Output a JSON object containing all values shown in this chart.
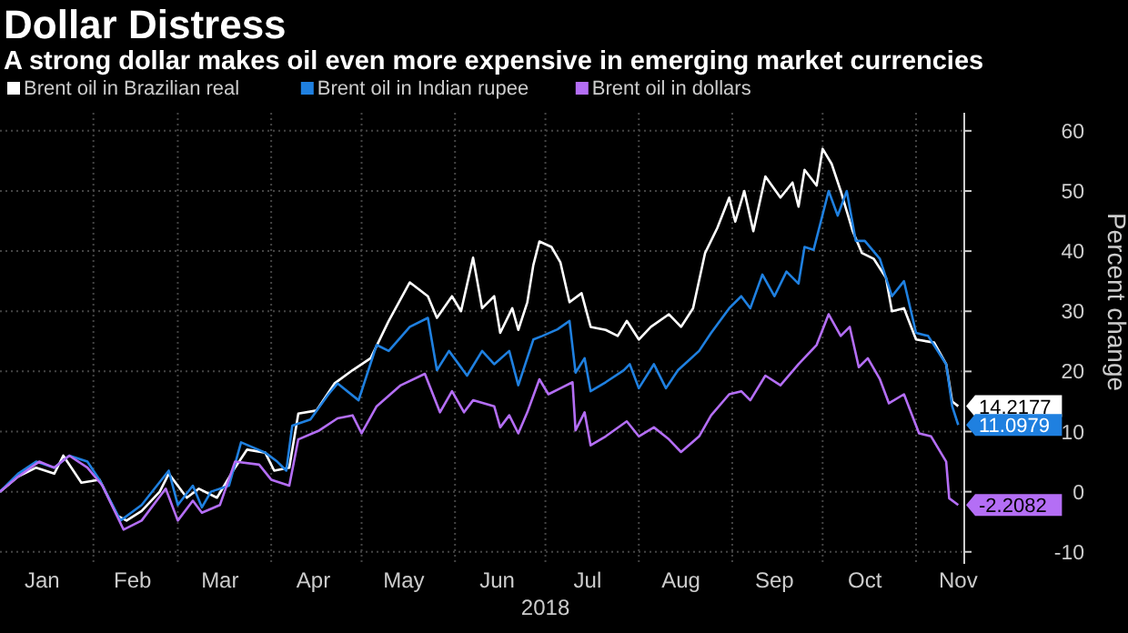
{
  "chart_data": {
    "type": "line",
    "title": "Dollar Distress",
    "subtitle": "A strong dollar makes oil even more expensive in emerging market currencies",
    "xlabel": "2018",
    "ylabel": "Percent change",
    "legend": "top left",
    "grid": true,
    "line_style": "solid",
    "marker": "none",
    "xlim": [
      "2018-01-01",
      "2018-11-17"
    ],
    "xticks": [
      {
        "value": "2018-01-15",
        "label": "Jan"
      },
      {
        "value": "2018-02-01",
        "label": null
      },
      {
        "value": "2018-02-14",
        "label": "Feb"
      },
      {
        "value": "2018-03-01",
        "label": null
      },
      {
        "value": "2018-03-15",
        "label": "Mar"
      },
      {
        "value": "2018-04-01",
        "label": null
      },
      {
        "value": "2018-04-15",
        "label": "Apr"
      },
      {
        "value": "2018-05-01",
        "label": null
      },
      {
        "value": "2018-05-15",
        "label": "May"
      },
      {
        "value": "2018-06-01",
        "label": null
      },
      {
        "value": "2018-06-15",
        "label": "Jun"
      },
      {
        "value": "2018-07-01",
        "label": null
      },
      {
        "value": "2018-07-15",
        "label": "Jul"
      },
      {
        "value": "2018-08-01",
        "label": null
      },
      {
        "value": "2018-08-15",
        "label": "Aug"
      },
      {
        "value": "2018-09-01",
        "label": null
      },
      {
        "value": "2018-09-15",
        "label": "Sep"
      },
      {
        "value": "2018-10-01",
        "label": null
      },
      {
        "value": "2018-10-15",
        "label": "Oct"
      },
      {
        "value": "2018-11-01",
        "label": null
      },
      {
        "value": "2018-11-15",
        "label": "Nov"
      }
    ],
    "ylim": [
      -12,
      63
    ],
    "yticks": [
      -10,
      0,
      10,
      20,
      30,
      40,
      50,
      60
    ],
    "series": [
      {
        "name": "Brent oil in Brazilian real",
        "color": "#ffffff",
        "x": [
          "2018-01-01",
          "2018-01-07",
          "2018-01-13",
          "2018-01-19",
          "2018-01-22",
          "2018-01-28",
          "2018-02-03",
          "2018-02-09",
          "2018-02-12",
          "2018-02-17",
          "2018-02-23",
          "2018-02-26",
          "2018-03-04",
          "2018-03-08",
          "2018-03-14",
          "2018-03-20",
          "2018-03-24",
          "2018-03-30",
          "2018-04-02",
          "2018-04-07",
          "2018-04-10",
          "2018-04-16",
          "2018-04-22",
          "2018-04-28",
          "2018-05-04",
          "2018-05-10",
          "2018-05-17",
          "2018-05-23",
          "2018-05-26",
          "2018-05-31",
          "2018-06-03",
          "2018-06-07",
          "2018-06-10",
          "2018-06-14",
          "2018-06-16",
          "2018-06-20",
          "2018-06-22",
          "2018-06-25",
          "2018-06-27",
          "2018-06-29",
          "2018-07-03",
          "2018-07-06",
          "2018-07-09",
          "2018-07-13",
          "2018-07-16",
          "2018-07-21",
          "2018-07-25",
          "2018-07-28",
          "2018-08-01",
          "2018-08-05",
          "2018-08-11",
          "2018-08-15",
          "2018-08-19",
          "2018-08-23",
          "2018-08-27",
          "2018-08-31",
          "2018-09-02",
          "2018-09-05",
          "2018-09-08",
          "2018-09-12",
          "2018-09-17",
          "2018-09-21",
          "2018-09-23",
          "2018-09-25",
          "2018-09-29",
          "2018-10-01",
          "2018-10-04",
          "2018-10-07",
          "2018-10-11",
          "2018-10-14",
          "2018-10-18",
          "2018-10-22",
          "2018-10-24",
          "2018-10-28",
          "2018-11-01",
          "2018-11-07",
          "2018-11-11",
          "2018-11-13",
          "2018-11-15"
        ],
        "values": [
          0,
          2.5,
          4,
          3,
          6,
          1.5,
          2,
          -4,
          -4.8,
          -3.2,
          0,
          3,
          -1,
          0.5,
          -1,
          4,
          7,
          6.5,
          3.5,
          4,
          13,
          13.5,
          18,
          20.2,
          22.2,
          28.4,
          34.8,
          32.5,
          28.9,
          32.5,
          30,
          38.9,
          30.5,
          32.5,
          26.4,
          30.5,
          26.9,
          31.5,
          37.7,
          41.6,
          40.7,
          38.1,
          31.5,
          33,
          27.4,
          26.9,
          25.9,
          28.4,
          25.3,
          27.4,
          29.5,
          27.4,
          30.5,
          39.7,
          43.8,
          48.9,
          44.9,
          50,
          43.3,
          52.4,
          48.9,
          51.4,
          47.4,
          53.5,
          50.9,
          57,
          54.5,
          50,
          43.3,
          39.7,
          38.7,
          35.6,
          30,
          30.5,
          25.3,
          24.8,
          21.2,
          15,
          14.2177
        ],
        "value_labels": [
          null,
          null,
          null,
          null,
          null,
          null,
          null,
          null,
          null,
          null,
          null,
          null,
          null,
          null,
          null,
          null,
          null,
          null,
          null,
          null,
          null,
          null,
          null,
          null,
          null,
          null,
          null,
          null,
          null,
          null,
          null,
          null,
          null,
          null,
          null,
          null,
          null,
          null,
          null,
          null,
          null,
          null,
          null,
          null,
          null,
          null,
          null,
          null,
          null,
          null,
          null,
          null,
          null,
          null,
          null,
          null,
          null,
          null,
          null,
          null,
          null,
          null,
          null,
          null,
          null,
          null,
          null,
          null,
          null,
          null,
          null,
          null,
          null,
          null,
          null,
          null,
          null,
          null,
          "14.2177"
        ]
      },
      {
        "name": "Brent oil in Indian rupee",
        "color": "#1f80e0",
        "x": [
          "2018-01-01",
          "2018-01-07",
          "2018-01-13",
          "2018-01-19",
          "2018-01-24",
          "2018-01-30",
          "2018-02-03",
          "2018-02-10",
          "2018-02-17",
          "2018-02-26",
          "2018-03-01",
          "2018-03-06",
          "2018-03-09",
          "2018-03-12",
          "2018-03-18",
          "2018-03-22",
          "2018-03-30",
          "2018-04-03",
          "2018-04-06",
          "2018-04-08",
          "2018-04-14",
          "2018-04-20",
          "2018-04-23",
          "2018-04-30",
          "2018-05-06",
          "2018-05-10",
          "2018-05-17",
          "2018-05-23",
          "2018-05-26",
          "2018-05-30",
          "2018-06-05",
          "2018-06-10",
          "2018-06-14",
          "2018-06-19",
          "2018-06-22",
          "2018-06-27",
          "2018-06-30",
          "2018-07-05",
          "2018-07-09",
          "2018-07-11",
          "2018-07-14",
          "2018-07-16",
          "2018-07-21",
          "2018-07-27",
          "2018-07-29",
          "2018-08-01",
          "2018-08-06",
          "2018-08-10",
          "2018-08-14",
          "2018-08-21",
          "2018-08-25",
          "2018-08-31",
          "2018-09-04",
          "2018-09-07",
          "2018-09-11",
          "2018-09-15",
          "2018-09-19",
          "2018-09-23",
          "2018-09-25",
          "2018-09-28",
          "2018-10-03",
          "2018-10-06",
          "2018-10-09",
          "2018-10-12",
          "2018-10-15",
          "2018-10-20",
          "2018-10-24",
          "2018-10-28",
          "2018-11-01",
          "2018-11-05",
          "2018-11-11",
          "2018-11-13",
          "2018-11-15"
        ],
        "values": [
          0,
          3,
          5,
          4,
          6,
          5,
          2,
          -4.8,
          -2.2,
          3.5,
          -2.2,
          1,
          -2.6,
          0,
          1,
          8.2,
          6.5,
          5,
          3.5,
          11,
          12,
          16.2,
          18,
          15.2,
          24.4,
          23.4,
          27.4,
          28.9,
          20.2,
          23.4,
          19.3,
          23.4,
          21.2,
          23.4,
          17.7,
          25.3,
          25.9,
          27,
          28.4,
          19.8,
          22.2,
          16.7,
          18.2,
          20.2,
          21.2,
          17.2,
          21.2,
          17.2,
          20.2,
          23.4,
          26.4,
          30.5,
          32.5,
          30.5,
          36.1,
          32.5,
          36.6,
          34.6,
          40.7,
          40.2,
          50,
          45.9,
          50,
          41.7,
          41.7,
          38.7,
          32.5,
          35,
          26.4,
          25.9,
          21.2,
          14.2,
          11.0979
        ],
        "value_labels": [
          null,
          null,
          null,
          null,
          null,
          null,
          null,
          null,
          null,
          null,
          null,
          null,
          null,
          null,
          null,
          null,
          null,
          null,
          null,
          null,
          null,
          null,
          null,
          null,
          null,
          null,
          null,
          null,
          null,
          null,
          null,
          null,
          null,
          null,
          null,
          null,
          null,
          null,
          null,
          null,
          null,
          null,
          null,
          null,
          null,
          null,
          null,
          null,
          null,
          null,
          null,
          null,
          null,
          null,
          null,
          null,
          null,
          null,
          null,
          null,
          null,
          null,
          null,
          null,
          null,
          null,
          null,
          null,
          null,
          null,
          null,
          null,
          "11.0979"
        ]
      },
      {
        "name": "Brent oil in dollars",
        "color": "#b46ef5",
        "x": [
          "2018-01-01",
          "2018-01-07",
          "2018-01-14",
          "2018-01-19",
          "2018-01-24",
          "2018-01-30",
          "2018-02-04",
          "2018-02-11",
          "2018-02-17",
          "2018-02-25",
          "2018-03-01",
          "2018-03-06",
          "2018-03-09",
          "2018-03-15",
          "2018-03-20",
          "2018-03-28",
          "2018-04-01",
          "2018-04-07",
          "2018-04-10",
          "2018-04-17",
          "2018-04-23",
          "2018-04-28",
          "2018-05-01",
          "2018-05-06",
          "2018-05-14",
          "2018-05-22",
          "2018-05-27",
          "2018-05-31",
          "2018-06-04",
          "2018-06-07",
          "2018-06-14",
          "2018-06-16",
          "2018-06-19",
          "2018-06-22",
          "2018-06-25",
          "2018-06-29",
          "2018-07-02",
          "2018-07-06",
          "2018-07-10",
          "2018-07-11",
          "2018-07-14",
          "2018-07-16",
          "2018-07-21",
          "2018-07-28",
          "2018-08-01",
          "2018-08-06",
          "2018-08-11",
          "2018-08-15",
          "2018-08-21",
          "2018-08-25",
          "2018-08-31",
          "2018-09-04",
          "2018-09-07",
          "2018-09-12",
          "2018-09-17",
          "2018-09-23",
          "2018-09-29",
          "2018-10-03",
          "2018-10-07",
          "2018-10-10",
          "2018-10-13",
          "2018-10-16",
          "2018-10-20",
          "2018-10-23",
          "2018-10-28",
          "2018-11-02",
          "2018-11-06",
          "2018-11-11",
          "2018-11-12",
          "2018-11-15"
        ],
        "values": [
          0,
          2.5,
          5,
          4,
          6,
          4,
          1,
          -6.3,
          -4.8,
          0.5,
          -4.8,
          -1.5,
          -3.5,
          -2.2,
          5,
          4.5,
          2,
          1,
          8.7,
          10.2,
          12.2,
          12.7,
          9.7,
          14.2,
          17.7,
          19.6,
          13.2,
          16.7,
          13.2,
          15.2,
          14.2,
          10.7,
          12.7,
          9.7,
          13.2,
          18.7,
          16.2,
          17.2,
          18.2,
          10.2,
          13.2,
          7.7,
          9.2,
          11.7,
          9.2,
          10.7,
          8.7,
          6.6,
          9.2,
          12.7,
          16.2,
          16.7,
          15.2,
          19.3,
          17.7,
          21.2,
          24.4,
          29.5,
          25.9,
          27.4,
          20.7,
          22.2,
          18.7,
          14.7,
          16.2,
          9.7,
          9.2,
          5,
          -1.1,
          -2.2082
        ],
        "value_labels": [
          null,
          null,
          null,
          null,
          null,
          null,
          null,
          null,
          null,
          null,
          null,
          null,
          null,
          null,
          null,
          null,
          null,
          null,
          null,
          null,
          null,
          null,
          null,
          null,
          null,
          null,
          null,
          null,
          null,
          null,
          null,
          null,
          null,
          null,
          null,
          null,
          null,
          null,
          null,
          null,
          null,
          null,
          null,
          null,
          null,
          null,
          null,
          null,
          null,
          null,
          null,
          null,
          null,
          null,
          null,
          null,
          null,
          null,
          null,
          null,
          null,
          null,
          null,
          null,
          null,
          null,
          null,
          null,
          null,
          "-2.2082"
        ]
      }
    ]
  }
}
